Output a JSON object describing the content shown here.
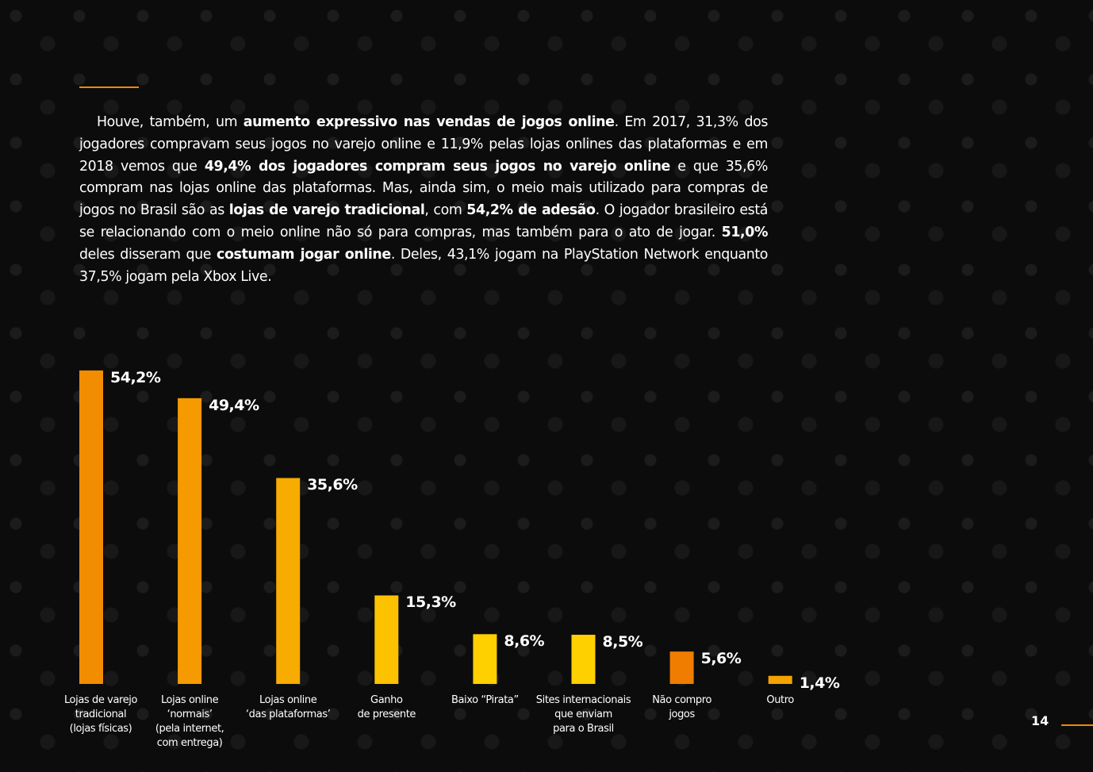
{
  "paragraph": [
    {
      "text": "Houve, também, um ",
      "bold": false
    },
    {
      "text": "aumento expressivo nas vendas de jogos online",
      "bold": true
    },
    {
      "text": ". Em 2017, 31,3% dos jogadores compravam seus jogos no varejo online e 11,9% pelas lojas onlines das plataformas e em 2018 vemos que ",
      "bold": false
    },
    {
      "text": "49,4% dos jogadores compram seus jogos no varejo online",
      "bold": true
    },
    {
      "text": " e que 35,6% compram nas lojas online das plataformas. Mas, ainda sim, o meio mais utilizado para compras de jogos no Brasil são as ",
      "bold": false
    },
    {
      "text": "lojas de varejo tradicional",
      "bold": true
    },
    {
      "text": ", com ",
      "bold": false
    },
    {
      "text": "54,2% de adesão",
      "bold": true
    },
    {
      "text": ". O jogador brasileiro está se relacionando com o meio online não só para compras, mas também para o ato de jogar. ",
      "bold": false
    },
    {
      "text": "51,0%",
      "bold": true
    },
    {
      "text": " deles disseram que ",
      "bold": false
    },
    {
      "text": "costumam jogar online",
      "bold": true
    },
    {
      "text": ". Deles, 43,1% jogam na PlayStation Network enquanto 37,5% jogam pela Xbox Live.",
      "bold": false
    }
  ],
  "chart_data": {
    "type": "bar",
    "categories": [
      "Lojas de varejo\ntradicional\n(lojas físicas)",
      "Lojas online ‘normais’\n(pela internet,\ncom entrega)",
      "Lojas online\n‘das plataformas’",
      "Ganho\nde presente",
      "Baixo “Pirata”",
      "Sites internacionais\nque enviam\npara o Brasil",
      "Não compro\njogos",
      "Outro"
    ],
    "values": [
      54.2,
      49.4,
      35.6,
      15.3,
      8.6,
      8.5,
      5.6,
      1.4
    ],
    "value_labels": [
      "54,2%",
      "49,4%",
      "35,6%",
      "15,3%",
      "8,6%",
      "8,5%",
      "5,6%",
      "1,4%"
    ],
    "colors": [
      "#f28c00",
      "#f59a00",
      "#f8ab00",
      "#fcc200",
      "#ffd000",
      "#ffd000",
      "#f07d00",
      "#f5a300"
    ]
  },
  "page_number": "14"
}
